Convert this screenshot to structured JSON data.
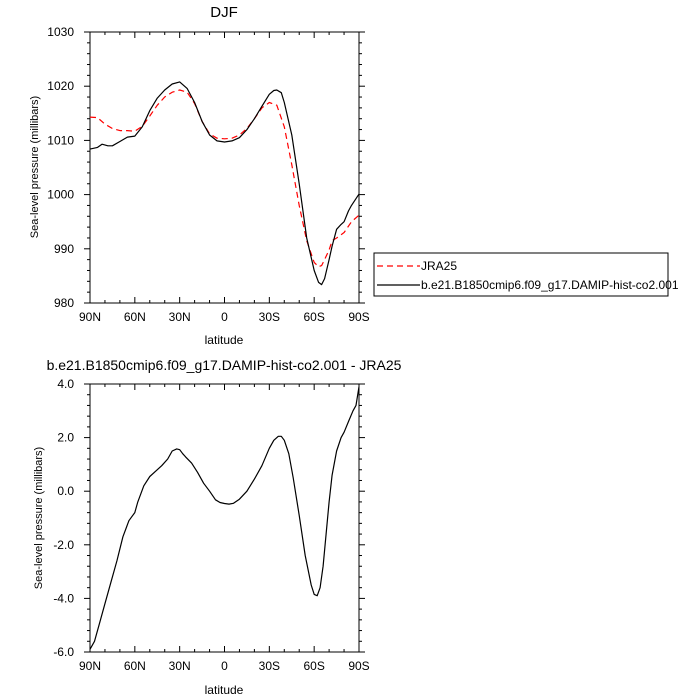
{
  "chart_data": [
    {
      "type": "line",
      "title": "DJF",
      "xlabel": "latitude",
      "ylabel": "Sea-level pressure (millibars)",
      "xlim": [
        90,
        -90
      ],
      "ylim": [
        980,
        1030
      ],
      "x_ticks": [
        90,
        60,
        30,
        0,
        -30,
        -60,
        -90
      ],
      "x_tick_labels": [
        "90N",
        "60N",
        "30N",
        "0",
        "30S",
        "60S",
        "90S"
      ],
      "y_ticks": [
        980,
        990,
        1000,
        1010,
        1020,
        1030
      ],
      "y_tick_labels": [
        "980",
        "990",
        "1000",
        "1010",
        "1020",
        "1030"
      ],
      "legend": {
        "placement": "right-outside",
        "entries": [
          {
            "label": "JRA25",
            "color": "#ff0000",
            "dash": "dashed"
          },
          {
            "label": "b.e21.B1850cmip6.f09_g17.DAMIP-hist-co2.001",
            "color": "#000000",
            "dash": "solid"
          }
        ]
      },
      "series": [
        {
          "name": "JRA25",
          "color": "#ff0000",
          "x": [
            90,
            85,
            80,
            75,
            70,
            65,
            60,
            55,
            50,
            45,
            40,
            35,
            30,
            25,
            20,
            15,
            10,
            5,
            0,
            -5,
            -10,
            -15,
            -20,
            -25,
            -30,
            -35,
            -40,
            -45,
            -50,
            -55,
            -60,
            -63,
            -65,
            -67,
            -70,
            -72,
            -75,
            -80,
            -85,
            -90
          ],
          "y": [
            1014.3,
            1014.2,
            1013.0,
            1012.2,
            1011.8,
            1011.8,
            1011.7,
            1012.6,
            1014.5,
            1016.5,
            1018.0,
            1018.9,
            1019.3,
            1018.9,
            1016.8,
            1013.5,
            1011.2,
            1010.4,
            1010.3,
            1010.4,
            1011.0,
            1012.2,
            1014.0,
            1016.0,
            1017.0,
            1016.5,
            1012.5,
            1005.5,
            998.0,
            991.5,
            987.5,
            986.7,
            986.9,
            988.0,
            989.8,
            991.5,
            992.0,
            993.0,
            995.0,
            996.2
          ]
        },
        {
          "name": "b.e21.B1850cmip6.f09_g17.DAMIP-hist-co2.001",
          "color": "#000000",
          "x": [
            90,
            85,
            82,
            78,
            75,
            70,
            65,
            60,
            55,
            50,
            45,
            40,
            35,
            30,
            25,
            20,
            15,
            10,
            5,
            0,
            -5,
            -10,
            -15,
            -20,
            -25,
            -30,
            -33,
            -35,
            -38,
            -40,
            -45,
            -50,
            -55,
            -60,
            -63,
            -65,
            -67,
            -70,
            -72,
            -75,
            -78,
            -80,
            -83,
            -85,
            -90
          ],
          "y": [
            1008.4,
            1008.7,
            1009.3,
            1009.0,
            1009.0,
            1009.8,
            1010.6,
            1010.8,
            1012.5,
            1015.5,
            1017.8,
            1019.3,
            1020.4,
            1020.8,
            1019.6,
            1017.0,
            1013.5,
            1011.0,
            1009.9,
            1009.7,
            1009.9,
            1010.5,
            1012.0,
            1014.0,
            1016.3,
            1018.5,
            1019.2,
            1019.3,
            1018.8,
            1017.0,
            1011.0,
            1002.0,
            992.0,
            986.0,
            983.8,
            983.4,
            984.5,
            988.0,
            990.5,
            993.6,
            994.5,
            995.0,
            997.0,
            998.0,
            1000.1
          ]
        }
      ]
    },
    {
      "type": "line",
      "title": "b.e21.B1850cmip6.f09_g17.DAMIP-hist-co2.001 - JRA25",
      "xlabel": "latitude",
      "ylabel": "Sea-level pressure (millibars)",
      "xlim": [
        90,
        -90
      ],
      "ylim": [
        -6.0,
        4.0
      ],
      "x_ticks": [
        90,
        60,
        30,
        0,
        -30,
        -60,
        -90
      ],
      "x_tick_labels": [
        "90N",
        "60N",
        "30N",
        "0",
        "30S",
        "60S",
        "90S"
      ],
      "y_ticks": [
        -6,
        -4,
        -2,
        0,
        2,
        4
      ],
      "y_tick_labels": [
        "-6.0",
        "-4.0",
        "-2.0",
        "0.0",
        "2.0",
        "4.0"
      ],
      "series": [
        {
          "color": "#000000",
          "x": [
            90,
            87,
            84,
            80,
            76,
            72,
            68,
            64,
            62,
            60,
            58,
            54,
            50,
            46,
            42,
            38,
            35,
            32,
            30,
            28,
            26,
            22,
            18,
            14,
            10,
            6,
            3,
            0,
            -3,
            -6,
            -10,
            -15,
            -20,
            -25,
            -30,
            -33,
            -36,
            -38,
            -40,
            -43,
            -46,
            -50,
            -54,
            -58,
            -60,
            -62,
            -64,
            -66,
            -68,
            -70,
            -72,
            -75,
            -78,
            -80,
            -83,
            -86,
            -88,
            -90
          ],
          "y": [
            -5.9,
            -5.6,
            -5.0,
            -4.2,
            -3.4,
            -2.6,
            -1.7,
            -1.1,
            -0.95,
            -0.8,
            -0.4,
            0.2,
            0.55,
            0.75,
            0.95,
            1.2,
            1.5,
            1.58,
            1.55,
            1.4,
            1.28,
            1.05,
            0.7,
            0.3,
            0.0,
            -0.32,
            -0.42,
            -0.46,
            -0.48,
            -0.45,
            -0.3,
            0.0,
            0.45,
            0.95,
            1.6,
            1.9,
            2.05,
            2.05,
            1.9,
            1.4,
            0.5,
            -0.9,
            -2.4,
            -3.5,
            -3.85,
            -3.9,
            -3.6,
            -2.8,
            -1.6,
            -0.4,
            0.6,
            1.5,
            2.0,
            2.2,
            2.6,
            3.0,
            3.2,
            3.9
          ]
        }
      ]
    }
  ]
}
